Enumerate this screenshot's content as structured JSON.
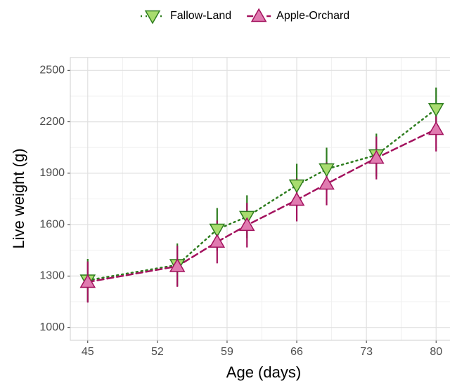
{
  "chart_data": {
    "type": "line",
    "x_label": "Age (days)",
    "y_label": "Live weight (g)",
    "x": [
      45,
      54,
      58,
      61,
      66,
      69,
      74,
      80
    ],
    "series": [
      {
        "name": "Fallow-Land",
        "color": "#2e7d1f",
        "fill": "#a8dc6e",
        "marker": "triangle-down",
        "linestyle": "dotted",
        "values": [
          1275,
          1365,
          1572,
          1646,
          1830,
          1924,
          2006,
          2275
        ],
        "errors": [
          125,
          125,
          125,
          125,
          125,
          125,
          125,
          125
        ]
      },
      {
        "name": "Apple-Orchard",
        "color": "#a3125e",
        "fill": "#e07bb0",
        "marker": "triangle-up",
        "linestyle": "dashed",
        "values": [
          1265,
          1357,
          1499,
          1597,
          1744,
          1838,
          1989,
          2157
        ],
        "errors": [
          120,
          120,
          125,
          130,
          125,
          125,
          125,
          130
        ]
      }
    ],
    "xlim": [
      43.25,
      81.75
    ],
    "xticks": [
      45,
      52,
      59,
      66,
      73,
      80
    ],
    "ylim": [
      925,
      2575
    ],
    "yticks": [
      1000,
      1300,
      1600,
      1900,
      2200,
      2500
    ],
    "grid": true,
    "legend": "top"
  }
}
